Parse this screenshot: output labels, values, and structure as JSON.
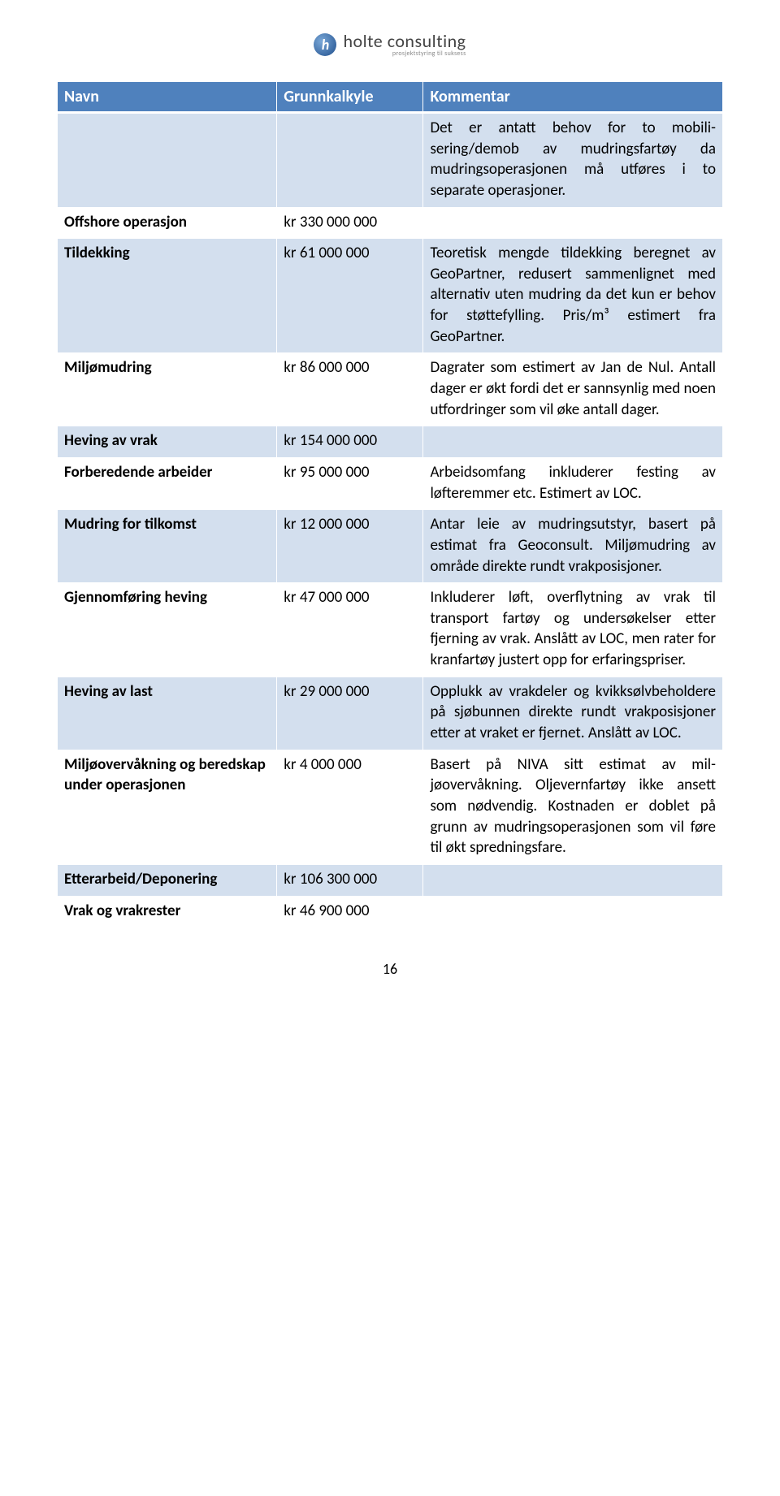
{
  "logo": {
    "letter": "h",
    "name": "holte consulting",
    "tagline": "prosjektstyring til suksess"
  },
  "table": {
    "headers": [
      "Navn",
      "Grunnkalkyle",
      "Kommentar"
    ],
    "header_bg": "#4f81bd",
    "header_fg": "#ffffff",
    "band_a_bg": "#d3dfee",
    "band_b_bg": "#ffffff",
    "border_color": "#ffffff",
    "columns_width_pct": [
      33,
      22,
      45
    ],
    "rows": [
      {
        "name": "",
        "value": "",
        "comment": "Det er antatt behov for to mobili­sering/demob av mudringsfartøy da mudringsoperasjonen må utfø­res i to separate operasjoner."
      },
      {
        "name": "Offshore operasjon",
        "value": "kr 330 000 000",
        "comment": ""
      },
      {
        "name": "Tildekking",
        "value": "kr 61 000 000",
        "comment": "Teoretisk mengde tildekking be­regnet av GeoPartner, redusert sammenlignet med alternativ uten mudring da det kun er behov for støttefylling. Pris/m³ estimert fra GeoPartner."
      },
      {
        "name": "Miljømudring",
        "value": "kr 86 000 000",
        "comment": "Dagrater som estimert av Jan de Nul. Antall dager er økt fordi det er sannsynlig med noen utfordringer som vil øke antall dager."
      },
      {
        "name": "Heving av vrak",
        "value": "kr 154 000 000",
        "comment": ""
      },
      {
        "name": "Forberedende arbeider",
        "value": "kr 95 000 000",
        "comment": "Arbeidsomfang inkluderer festing av løfteremmer etc. Estimert av LOC."
      },
      {
        "name": "Mudring for tilkomst",
        "value": "kr 12 000 000",
        "comment": "Antar leie av mudringsutstyr, ba­sert på estimat fra Geoconsult. Miljømudring av område direkte rundt vrakposisjoner."
      },
      {
        "name": "Gjennomføring heving",
        "value": "kr 47 000 000",
        "comment": "Inkluderer løft, overflytning av vrak til transport fartøy og undersøkel­ser etter fjerning av vrak. Anslått av LOC, men rater for kranfartøy justert opp for erfaringspriser."
      },
      {
        "name": "Heving av last",
        "value": "kr 29 000 000",
        "comment": "Opplukk av vrakdeler og kvikksølv­beholdere på sjøbunnen direkte rundt vrakposisjoner etter at vra­ket er fjernet. Anslått av LOC."
      },
      {
        "name": "Miljøovervåkning og bered­skap under operasjonen",
        "value": "kr 4 000 000",
        "comment": "Basert på NIVA sitt estimat av mil­jøovervåkning. Oljevernfartøy ikke ansett som nødvendig. Kostnaden er doblet på grunn av mudrings­operasjonen som vil føre til økt spredningsfare."
      },
      {
        "name": "Etterarbeid/Deponering",
        "value": "kr 106 300 000",
        "comment": ""
      },
      {
        "name": "Vrak og vrakrester",
        "value": "kr 46 900 000",
        "comment": ""
      }
    ]
  },
  "page_number": "16"
}
